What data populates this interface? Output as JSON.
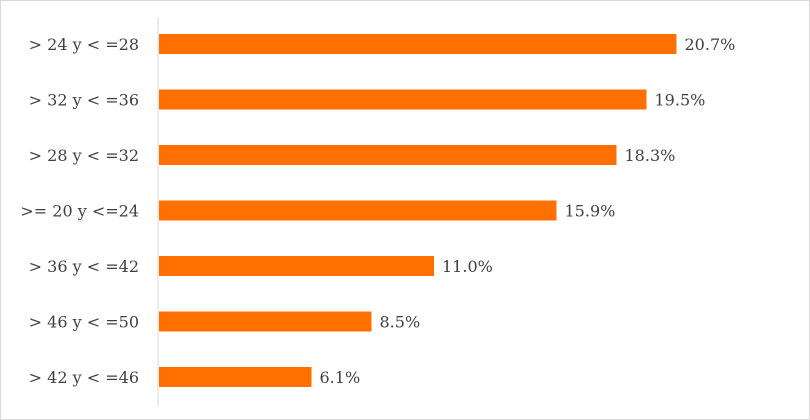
{
  "chart_data": {
    "type": "bar",
    "orientation": "horizontal",
    "categories": [
      "> 24 y < =28",
      "> 32 y < =36",
      "> 28 y < =32",
      ">= 20 y <=24",
      "> 36 y < =42",
      "> 46 y < =50",
      "> 42 y < =46"
    ],
    "values": [
      20.7,
      19.5,
      18.3,
      15.9,
      11.0,
      8.5,
      6.1
    ],
    "value_labels": [
      "20.7%",
      "19.5%",
      "18.3%",
      "15.9%",
      "11.0%",
      "8.5%",
      "6.1%"
    ],
    "title": "",
    "xlabel": "",
    "ylabel": "",
    "xlim": [
      0,
      25.2
    ],
    "grid": false,
    "legend": "none",
    "bar_color": "#FF7000"
  }
}
